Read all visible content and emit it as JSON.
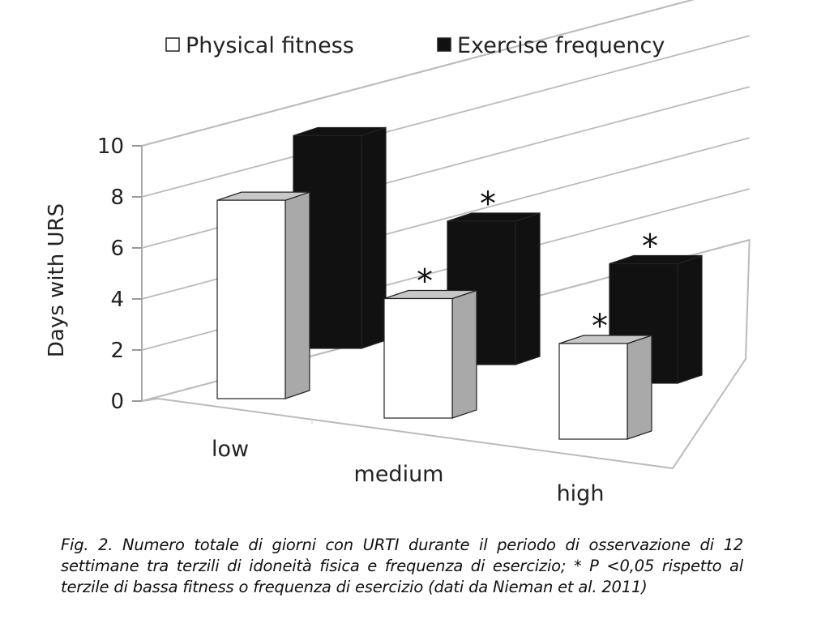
{
  "chart_data": {
    "type": "bar",
    "categories": [
      "low",
      "medium",
      "high"
    ],
    "series": [
      {
        "name": "Physical fitness",
        "values": [
          8.3,
          5.0,
          4.0
        ],
        "significant": [
          false,
          true,
          true
        ],
        "color": "#ffffff",
        "side_color": "#a9a9a9"
      },
      {
        "name": "Exercise frequency",
        "values": [
          8.9,
          6.0,
          5.0
        ],
        "significant": [
          false,
          true,
          true
        ],
        "color": "#111111",
        "side_color": "#111111"
      }
    ],
    "ylabel": "Days with URS",
    "xlabel": "",
    "ylim": [
      0,
      10
    ],
    "yticks": [
      0,
      2,
      4,
      6,
      8,
      10
    ],
    "significance_marker": "*",
    "legend_position": "top",
    "grid": true
  },
  "caption": {
    "line1": "Fig. 2. Numero totale di giorni con URTI durante il periodo di osservazione di 12",
    "line2": "settimane tra terzili di idoneità fisica e frequenza di esercizio; * P <0,05 rispetto al",
    "line3": "terzile di bassa fitness o frequenza di esercizio (dati da Nieman et al. 2011)"
  }
}
